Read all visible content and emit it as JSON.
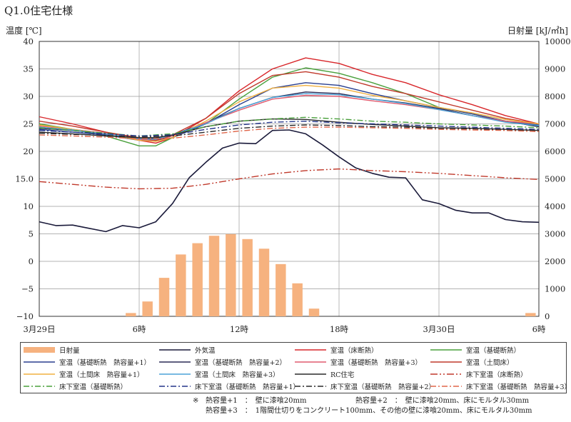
{
  "title": "Q1.0住宅仕様",
  "chart_data": {
    "type": "line",
    "y_left_label": "温度 [℃]",
    "y_right_label": "日射量 [kJ/㎡h]",
    "y_left_range": [
      -10,
      40
    ],
    "y_left_ticks": [
      "40",
      "35",
      "30",
      "25",
      "20",
      "15.0",
      "10",
      "5",
      "0",
      "−5",
      "−10"
    ],
    "y_left_tick_values": [
      40,
      35,
      30,
      25,
      20,
      15,
      10,
      5,
      0,
      -5,
      -10
    ],
    "y_right_range": [
      0,
      10000
    ],
    "y_right_ticks": [
      "10000",
      "9000",
      "8000",
      "7000",
      "6000",
      "5000",
      "4000",
      "3000",
      "2000",
      "1000",
      "0"
    ],
    "y_right_tick_values": [
      10000,
      9000,
      8000,
      7000,
      6000,
      5000,
      4000,
      3000,
      2000,
      1000,
      0
    ],
    "x_range": [
      0,
      30
    ],
    "x_ticks": [
      {
        "value": 0,
        "label": "3月29日"
      },
      {
        "value": 6,
        "label": "6時"
      },
      {
        "value": 12,
        "label": "12時"
      },
      {
        "value": 18,
        "label": "18時"
      },
      {
        "value": 24,
        "label": "3月30日"
      },
      {
        "value": 30,
        "label": "6時"
      }
    ],
    "solar": {
      "name": "日射量",
      "x": [
        5.5,
        6.5,
        7.5,
        8.5,
        9.5,
        10.5,
        11.5,
        12.5,
        13.5,
        14.5,
        15.5,
        16.5,
        29.5
      ],
      "values": [
        120,
        540,
        1400,
        2250,
        2660,
        2930,
        2990,
        2810,
        2460,
        1900,
        1200,
        280,
        120
      ]
    },
    "series": [
      {
        "name": "外気温",
        "color": "#1a1a3a",
        "dash": "",
        "width": 1.6,
        "points": [
          [
            0,
            7.2
          ],
          [
            1,
            6.5
          ],
          [
            2,
            6.6
          ],
          [
            3,
            6.0
          ],
          [
            4,
            5.4
          ],
          [
            5,
            6.5
          ],
          [
            6,
            6.1
          ],
          [
            7,
            7.2
          ],
          [
            8,
            10.5
          ],
          [
            9,
            15.2
          ],
          [
            10,
            18.0
          ],
          [
            11,
            20.6
          ],
          [
            12,
            21.5
          ],
          [
            13,
            21.4
          ],
          [
            14,
            23.8
          ],
          [
            15,
            23.9
          ],
          [
            16,
            23.2
          ],
          [
            17,
            21.2
          ],
          [
            18,
            19.0
          ],
          [
            19,
            17.0
          ],
          [
            20,
            16.0
          ],
          [
            21,
            15.3
          ],
          [
            22,
            15.2
          ],
          [
            23,
            11.2
          ],
          [
            24,
            10.5
          ],
          [
            25,
            9.3
          ],
          [
            26,
            8.8
          ],
          [
            27,
            8.8
          ],
          [
            28,
            7.6
          ],
          [
            29,
            7.2
          ],
          [
            30,
            7.1
          ]
        ]
      },
      {
        "name": "室温（床断熱）",
        "color": "#d8262a",
        "dash": "",
        "width": 1.4,
        "points": [
          [
            0,
            26.3
          ],
          [
            2,
            25.0
          ],
          [
            4,
            23.5
          ],
          [
            6,
            22.0
          ],
          [
            7,
            21.5
          ],
          [
            8,
            22.5
          ],
          [
            10,
            26.0
          ],
          [
            12,
            31.0
          ],
          [
            14,
            35.0
          ],
          [
            16,
            37.0
          ],
          [
            18,
            36.0
          ],
          [
            20,
            34.0
          ],
          [
            22,
            32.5
          ],
          [
            24,
            30.3
          ],
          [
            26,
            28.5
          ],
          [
            28,
            26.5
          ],
          [
            30,
            25.0
          ]
        ]
      },
      {
        "name": "室温（基礎断熱）",
        "color": "#4aa03c",
        "dash": "",
        "width": 1.4,
        "points": [
          [
            0,
            25.0
          ],
          [
            2,
            24.0
          ],
          [
            4,
            22.8
          ],
          [
            6,
            21.0
          ],
          [
            7,
            21.0
          ],
          [
            8,
            22.5
          ],
          [
            10,
            25.0
          ],
          [
            12,
            29.5
          ],
          [
            14,
            33.5
          ],
          [
            16,
            35.2
          ],
          [
            18,
            34.2
          ],
          [
            20,
            32.5
          ],
          [
            22,
            30.5
          ],
          [
            24,
            28.0
          ],
          [
            26,
            26.8
          ],
          [
            28,
            25.5
          ],
          [
            30,
            24.5
          ]
        ]
      },
      {
        "name": "室温（基礎断熱　熱容量+1）",
        "color": "#2a3f8f",
        "dash": "",
        "width": 1.4,
        "points": [
          [
            0,
            24.0
          ],
          [
            2,
            23.5
          ],
          [
            4,
            23.0
          ],
          [
            6,
            22.0
          ],
          [
            7,
            22.0
          ],
          [
            8,
            22.5
          ],
          [
            10,
            25.0
          ],
          [
            12,
            28.5
          ],
          [
            14,
            31.5
          ],
          [
            16,
            32.5
          ],
          [
            18,
            32.0
          ],
          [
            20,
            30.5
          ],
          [
            22,
            29.2
          ],
          [
            24,
            28.0
          ],
          [
            26,
            26.8
          ],
          [
            28,
            25.5
          ],
          [
            30,
            24.8
          ]
        ]
      },
      {
        "name": "室温（基礎断熱　熱容量+2）",
        "color": "#2a2a55",
        "dash": "",
        "width": 1.4,
        "points": [
          [
            0,
            24.2
          ],
          [
            2,
            23.8
          ],
          [
            4,
            23.2
          ],
          [
            6,
            22.4
          ],
          [
            7,
            22.4
          ],
          [
            8,
            23.0
          ],
          [
            10,
            25.2
          ],
          [
            12,
            27.8
          ],
          [
            14,
            29.8
          ],
          [
            16,
            30.8
          ],
          [
            18,
            30.5
          ],
          [
            20,
            29.5
          ],
          [
            22,
            28.8
          ],
          [
            24,
            27.8
          ],
          [
            26,
            26.5
          ],
          [
            28,
            25.5
          ],
          [
            30,
            24.5
          ]
        ]
      },
      {
        "name": "室温（基礎断熱　熱容量+3）",
        "color": "#e05a6e",
        "dash": "",
        "width": 1.4,
        "points": [
          [
            0,
            24.6
          ],
          [
            2,
            24.0
          ],
          [
            4,
            23.3
          ],
          [
            6,
            22.2
          ],
          [
            7,
            22.0
          ],
          [
            8,
            22.8
          ],
          [
            10,
            25.2
          ],
          [
            12,
            27.5
          ],
          [
            14,
            29.5
          ],
          [
            16,
            30.2
          ],
          [
            18,
            30.0
          ],
          [
            20,
            29.2
          ],
          [
            22,
            28.5
          ],
          [
            24,
            27.6
          ],
          [
            26,
            26.5
          ],
          [
            28,
            25.5
          ],
          [
            30,
            25.0
          ]
        ]
      },
      {
        "name": "室温（土間床）",
        "color": "#c0392b",
        "dash": "",
        "width": 1.4,
        "points": [
          [
            0,
            25.5
          ],
          [
            2,
            24.6
          ],
          [
            4,
            23.5
          ],
          [
            6,
            22.5
          ],
          [
            7,
            22.0
          ],
          [
            8,
            23.0
          ],
          [
            10,
            26.0
          ],
          [
            12,
            30.5
          ],
          [
            14,
            33.8
          ],
          [
            16,
            34.5
          ],
          [
            18,
            33.5
          ],
          [
            20,
            31.8
          ],
          [
            22,
            30.5
          ],
          [
            24,
            29.0
          ],
          [
            26,
            27.5
          ],
          [
            28,
            26.0
          ],
          [
            30,
            25.0
          ]
        ]
      },
      {
        "name": "室温（土間床　熱容量+1）",
        "color": "#f0b040",
        "dash": "",
        "width": 1.4,
        "points": [
          [
            0,
            24.8
          ],
          [
            2,
            24.0
          ],
          [
            4,
            23.2
          ],
          [
            6,
            22.0
          ],
          [
            7,
            21.8
          ],
          [
            8,
            22.5
          ],
          [
            10,
            25.5
          ],
          [
            12,
            29.0
          ],
          [
            14,
            31.5
          ],
          [
            16,
            32.0
          ],
          [
            18,
            31.5
          ],
          [
            20,
            30.2
          ],
          [
            22,
            29.2
          ],
          [
            24,
            28.0
          ],
          [
            26,
            27.0
          ],
          [
            28,
            25.8
          ],
          [
            30,
            25.0
          ]
        ]
      },
      {
        "name": "室温（土間床　熱容量+3）",
        "color": "#4ba3d8",
        "dash": "",
        "width": 1.4,
        "points": [
          [
            0,
            24.4
          ],
          [
            2,
            23.9
          ],
          [
            4,
            23.2
          ],
          [
            6,
            22.3
          ],
          [
            7,
            22.2
          ],
          [
            8,
            23.0
          ],
          [
            10,
            25.0
          ],
          [
            12,
            27.8
          ],
          [
            14,
            29.8
          ],
          [
            16,
            30.5
          ],
          [
            18,
            30.3
          ],
          [
            20,
            29.5
          ],
          [
            22,
            28.7
          ],
          [
            24,
            27.6
          ],
          [
            26,
            26.5
          ],
          [
            28,
            25.3
          ],
          [
            30,
            24.7
          ]
        ]
      },
      {
        "name": "RC住宅",
        "color": "#2a2a2a",
        "dash": "",
        "width": 1.4,
        "points": [
          [
            0,
            23.5
          ],
          [
            2,
            23.2
          ],
          [
            4,
            22.8
          ],
          [
            6,
            22.5
          ],
          [
            7,
            22.5
          ],
          [
            8,
            23.0
          ],
          [
            10,
            24.5
          ],
          [
            12,
            25.5
          ],
          [
            14,
            25.9
          ],
          [
            16,
            25.8
          ],
          [
            18,
            25.3
          ],
          [
            20,
            24.9
          ],
          [
            22,
            24.6
          ],
          [
            24,
            24.3
          ],
          [
            26,
            24.2
          ],
          [
            28,
            24.0
          ],
          [
            30,
            23.8
          ]
        ]
      },
      {
        "name": "床下室温（床断熱）",
        "color": "#c0392b",
        "dash": "10,3,2,3,2,3",
        "width": 1.4,
        "points": [
          [
            0,
            14.5
          ],
          [
            2,
            14.0
          ],
          [
            4,
            13.5
          ],
          [
            6,
            13.2
          ],
          [
            8,
            13.3
          ],
          [
            10,
            14.0
          ],
          [
            12,
            15.0
          ],
          [
            14,
            15.9
          ],
          [
            16,
            16.5
          ],
          [
            18,
            16.8
          ],
          [
            20,
            16.5
          ],
          [
            22,
            16.3
          ],
          [
            24,
            16.0
          ],
          [
            26,
            15.6
          ],
          [
            28,
            15.2
          ],
          [
            30,
            14.9
          ]
        ]
      },
      {
        "name": "床下室温（基礎断熱）",
        "color": "#4aa03c",
        "dash": "8,3,2,3",
        "width": 1.4,
        "points": [
          [
            0,
            24.3
          ],
          [
            2,
            23.8
          ],
          [
            4,
            23.3
          ],
          [
            6,
            22.8
          ],
          [
            8,
            23.2
          ],
          [
            10,
            24.5
          ],
          [
            12,
            25.5
          ],
          [
            14,
            25.9
          ],
          [
            16,
            26.2
          ],
          [
            18,
            25.9
          ],
          [
            20,
            25.5
          ],
          [
            22,
            25.3
          ],
          [
            24,
            25.0
          ],
          [
            26,
            24.8
          ],
          [
            28,
            24.6
          ],
          [
            30,
            24.3
          ]
        ]
      },
      {
        "name": "床下室温（基礎断熱　熱容量+1）",
        "color": "#24358a",
        "dash": "8,3,2,3",
        "width": 1.4,
        "points": [
          [
            0,
            23.8
          ],
          [
            2,
            23.5
          ],
          [
            4,
            23.2
          ],
          [
            6,
            22.8
          ],
          [
            8,
            23.0
          ],
          [
            10,
            24.0
          ],
          [
            12,
            24.8
          ],
          [
            14,
            25.3
          ],
          [
            16,
            25.5
          ],
          [
            18,
            25.2
          ],
          [
            20,
            25.0
          ],
          [
            22,
            24.8
          ],
          [
            24,
            24.6
          ],
          [
            26,
            24.4
          ],
          [
            28,
            24.2
          ],
          [
            30,
            24.0
          ]
        ]
      },
      {
        "name": "床下室温（基礎断熱　熱容量+2）",
        "color": "#2a2a2a",
        "dash": "8,3,2,3",
        "width": 1.4,
        "points": [
          [
            0,
            23.3
          ],
          [
            2,
            23.1
          ],
          [
            4,
            22.9
          ],
          [
            6,
            22.6
          ],
          [
            8,
            22.8
          ],
          [
            10,
            23.5
          ],
          [
            12,
            24.2
          ],
          [
            14,
            24.6
          ],
          [
            16,
            24.8
          ],
          [
            18,
            24.7
          ],
          [
            20,
            24.5
          ],
          [
            22,
            24.4
          ],
          [
            24,
            24.2
          ],
          [
            26,
            24.1
          ],
          [
            28,
            23.9
          ],
          [
            30,
            23.8
          ]
        ]
      },
      {
        "name": "床下室温（基礎断熱　熱容量+3）",
        "color": "#e0664a",
        "dash": "8,3,2,3",
        "width": 1.4,
        "points": [
          [
            0,
            23.0
          ],
          [
            2,
            22.8
          ],
          [
            4,
            22.6
          ],
          [
            6,
            22.3
          ],
          [
            8,
            22.4
          ],
          [
            10,
            23.0
          ],
          [
            12,
            23.7
          ],
          [
            14,
            24.2
          ],
          [
            16,
            24.4
          ],
          [
            18,
            24.4
          ],
          [
            20,
            24.3
          ],
          [
            22,
            24.2
          ],
          [
            24,
            24.0
          ],
          [
            26,
            23.9
          ],
          [
            28,
            23.8
          ],
          [
            30,
            23.6
          ]
        ]
      }
    ]
  },
  "notes": [
    {
      "mark": "※",
      "lines": [
        {
          "label": "熱容量+1　：　壁に漆喰20mm",
          "label2": "熱容量+2　：　壁に漆喰20mm、床にモルタル30mm"
        },
        {
          "label": "熱容量+3　：　1階間仕切りをコンクリート100mm、その他の壁に漆喰20mm、床にモルタル30mm",
          "label2": ""
        }
      ]
    }
  ]
}
